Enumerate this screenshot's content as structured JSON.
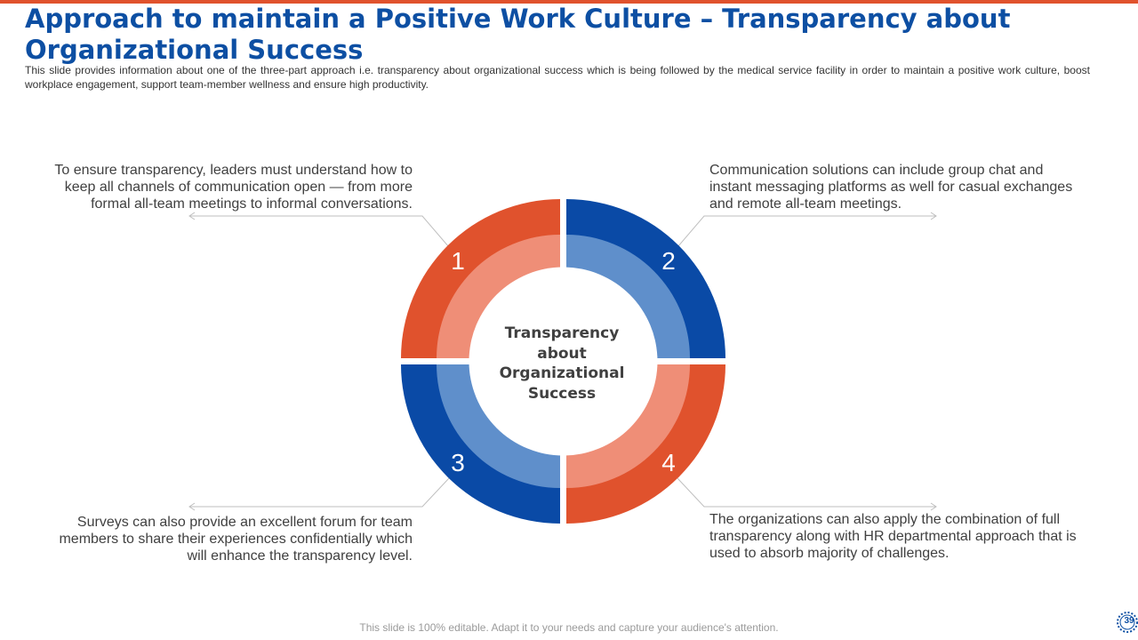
{
  "slide": {
    "title": "Approach to maintain a Positive Work Culture – Transparency about Organizational Success",
    "subtitle": "This slide provides information about one of the three-part approach i.e. transparency about organizational success which is being followed by the medical service facility in order to maintain a positive work culture, boost workplace engagement, support team-member wellness and ensure high productivity.",
    "footer": "This slide is 100% editable. Adapt it to your needs and capture your audience's attention.",
    "page_number": "39"
  },
  "diagram": {
    "center_lines": [
      "Transparency",
      "about",
      "Organizational",
      "Success"
    ],
    "segments": [
      {
        "number": "1",
        "text": "To ensure transparency, leaders must understand how to keep all channels of communication open — from more formal all-team meetings to informal conversations."
      },
      {
        "number": "2",
        "text": "Communication solutions can include group chat and instant messaging platforms as well for casual exchanges and remote all-team meetings."
      },
      {
        "number": "3",
        "text": "Surveys can also provide an excellent forum for team members to share their experiences confidentially which will enhance the transparency level."
      },
      {
        "number": "4",
        "text": "The organizations can also apply the combination of full transparency along with HR departmental approach that is used to absorb majority of challenges."
      }
    ]
  },
  "colors": {
    "orange_dark": "#e0522d",
    "orange_light": "#ef8e77",
    "blue_dark": "#0a4aa6",
    "blue_light": "#5f8fcb",
    "title": "#0d4fa3"
  }
}
